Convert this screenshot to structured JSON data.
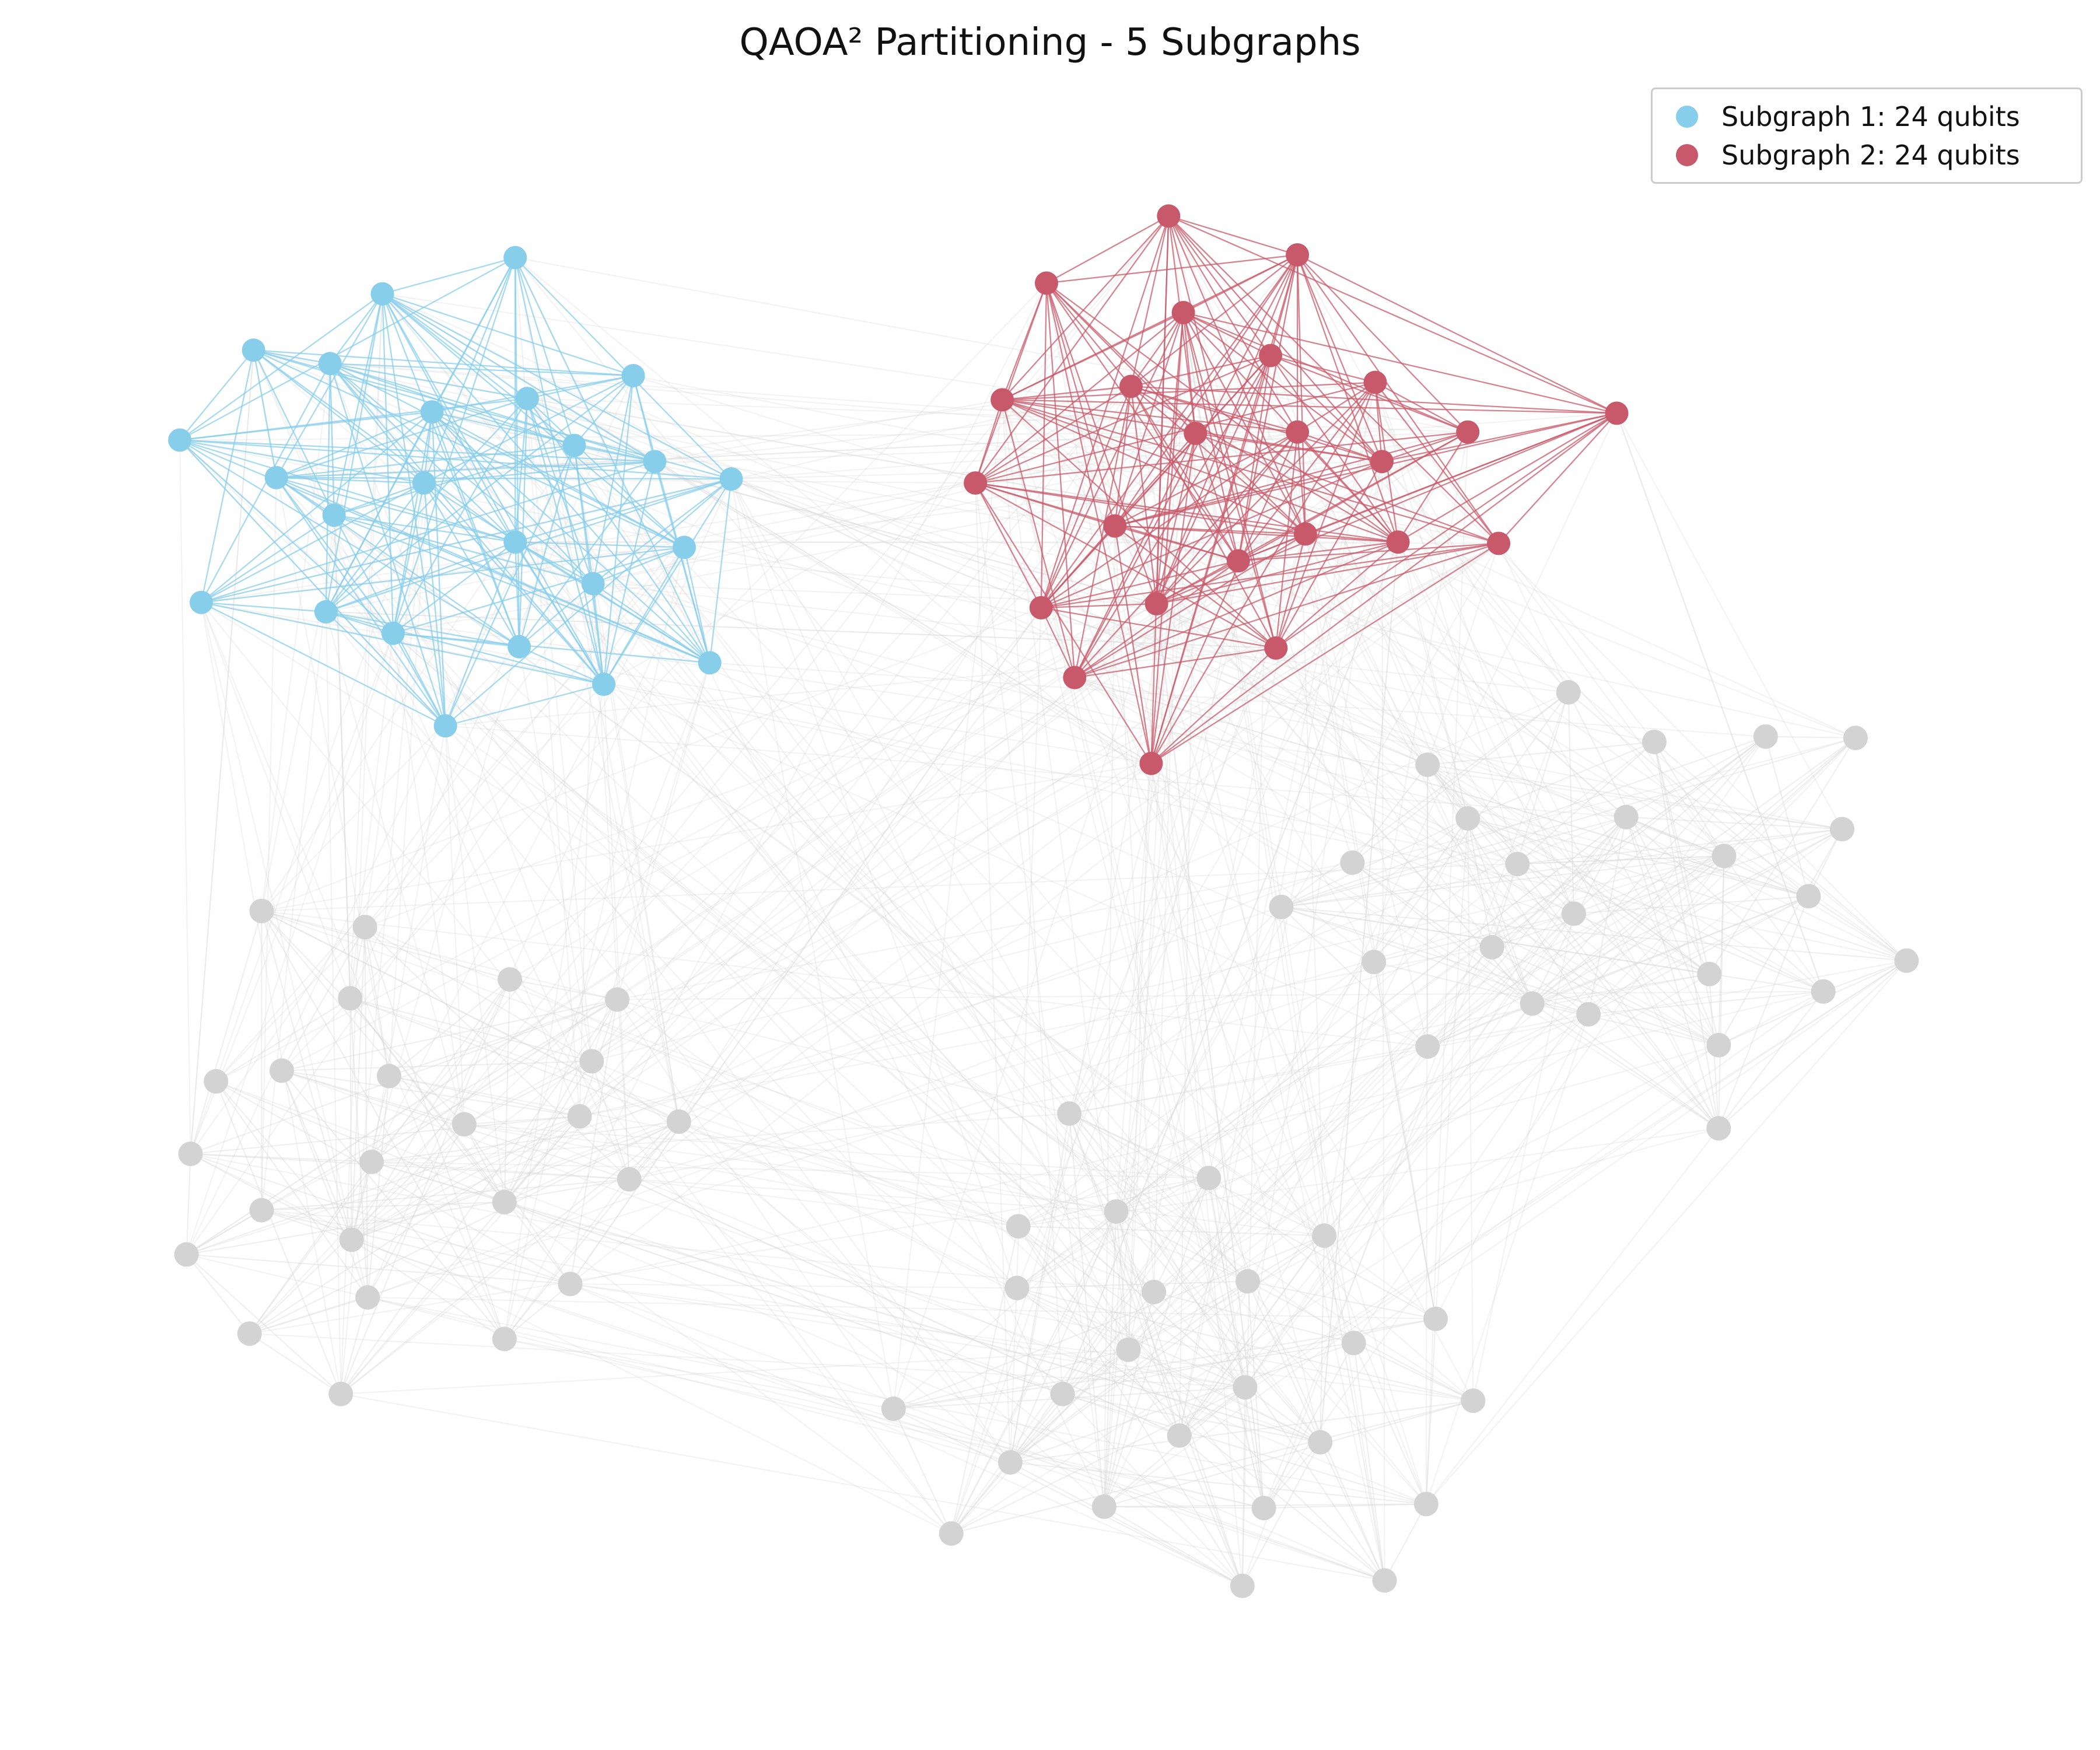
{
  "title": "QAOA² Partitioning - 5 Subgraphs",
  "legend": [
    {
      "label": "Subgraph 1: 24 qubits",
      "color": "#87ceeb"
    },
    {
      "label": "Subgraph 2: 24 qubits",
      "color": "#c8596b"
    }
  ],
  "colors": {
    "subgraph_1": "#87ceeb",
    "subgraph_2": "#c8596b",
    "other_nodes": "#d3d3d3",
    "background_edges": "#d9d9d9"
  },
  "graph": {
    "node_count": 120,
    "highlighted_subgraphs": 2,
    "nodes_per_subgraph": 24
  }
}
